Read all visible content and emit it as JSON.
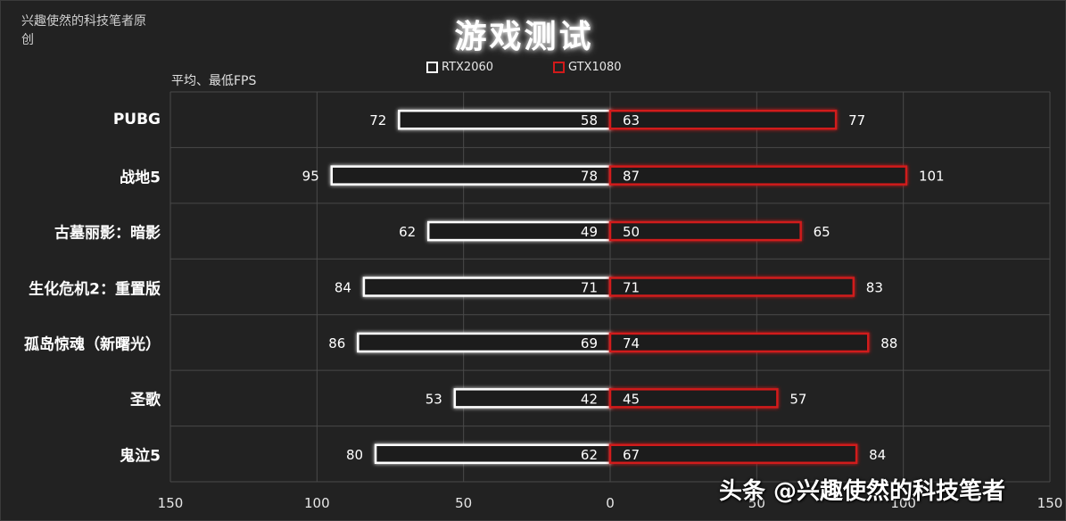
{
  "corner_text": "兴趣使然的科技笔者原创",
  "title": "游戏测试",
  "subtitle": "平均、最低FPS",
  "legend": [
    {
      "label": "RTX2060",
      "color": "#ffffff"
    },
    {
      "label": "GTX1080",
      "color": "#d11a1a"
    }
  ],
  "watermark": "头条 @兴趣使然的科技笔者",
  "chart_data": {
    "type": "bar",
    "subtype": "diverging-horizontal-bar",
    "title": "游戏测试",
    "xlabel": "平均、最低FPS",
    "xlim": [
      -150,
      150
    ],
    "x_ticks": [
      150,
      100,
      50,
      0,
      50,
      100,
      150
    ],
    "grid": true,
    "legend_position": "top",
    "categories": [
      "PUBG",
      "战地5",
      "古墓丽影：暗影",
      "生化危机2：重置版",
      "孤岛惊魂（新曙光）",
      "圣歌",
      "鬼泣5"
    ],
    "series": [
      {
        "name": "RTX2060",
        "side": "left",
        "avg": [
          72,
          95,
          62,
          84,
          86,
          53,
          80
        ],
        "min": [
          58,
          78,
          49,
          71,
          69,
          42,
          62
        ]
      },
      {
        "name": "GTX1080",
        "side": "right",
        "avg": [
          77,
          101,
          65,
          83,
          88,
          57,
          84
        ],
        "min": [
          63,
          87,
          50,
          71,
          74,
          45,
          67
        ]
      }
    ]
  }
}
